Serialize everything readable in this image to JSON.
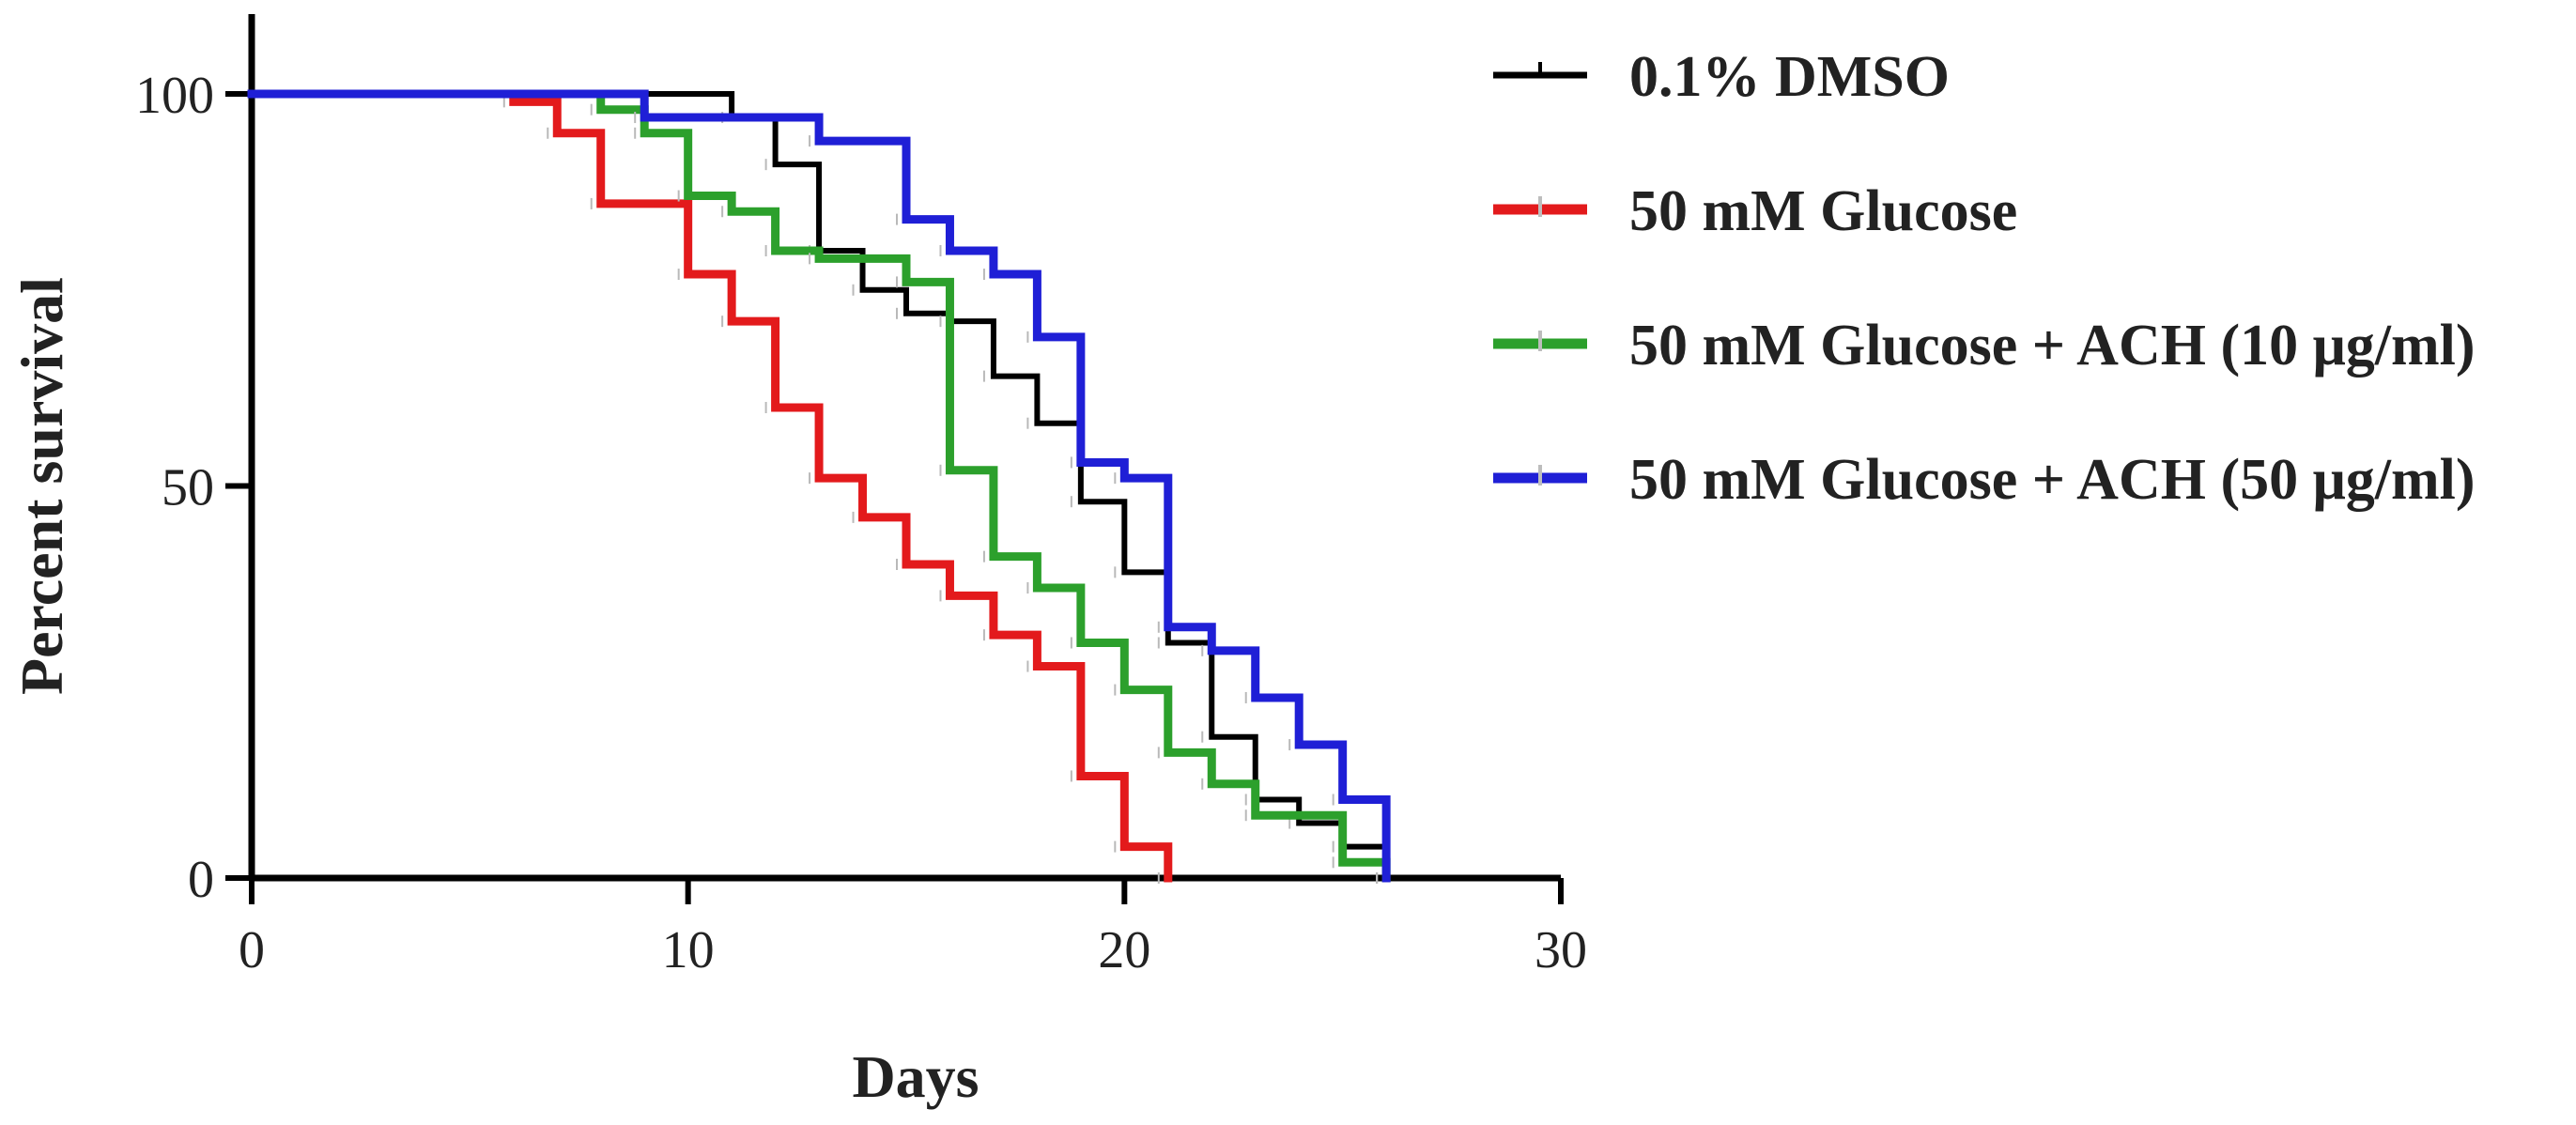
{
  "chart_data": {
    "type": "line",
    "style": "step",
    "title": "",
    "xlabel": "Days",
    "ylabel": "Percent survival",
    "xlim": [
      0,
      30
    ],
    "ylim": [
      0,
      100
    ],
    "xticks": [
      0,
      10,
      20,
      30
    ],
    "yticks": [
      0,
      50,
      100
    ],
    "grid": false,
    "legend_position": "top-right",
    "series": [
      {
        "name": "0.1% DMSO",
        "color": "#000000",
        "x": [
          0,
          11,
          12,
          13,
          14,
          15,
          16,
          17,
          18,
          19,
          20,
          21,
          22,
          23,
          24,
          25,
          26
        ],
        "y": [
          100,
          97,
          91,
          80,
          75,
          72,
          71,
          64,
          58,
          48,
          39,
          30,
          18,
          10,
          7,
          4,
          0
        ]
      },
      {
        "name": "50 mM Glucose",
        "color": "#e31a1c",
        "x": [
          0,
          6,
          7,
          8,
          10,
          11,
          12,
          13,
          14,
          15,
          16,
          17,
          18,
          19,
          20,
          21
        ],
        "y": [
          100,
          99,
          95,
          86,
          77,
          71,
          60,
          51,
          46,
          40,
          36,
          31,
          27,
          13,
          4,
          0
        ]
      },
      {
        "name": "50 mM Glucose + ACH (10 μg/ml)",
        "color": "#2ca02c",
        "x": [
          0,
          8,
          9,
          10,
          11,
          12,
          13,
          15,
          16,
          17,
          18,
          19,
          20,
          21,
          22,
          23,
          25,
          26
        ],
        "y": [
          100,
          98,
          95,
          87,
          85,
          80,
          79,
          76,
          52,
          41,
          37,
          30,
          24,
          16,
          12,
          8,
          2,
          0
        ]
      },
      {
        "name": "50 mM Glucose + ACH (50 μg/ml)",
        "color": "#1f1fd6",
        "x": [
          0,
          9,
          13,
          15,
          16,
          17,
          18,
          19,
          20,
          21,
          22,
          23,
          24,
          25,
          26
        ],
        "y": [
          100,
          97,
          94,
          84,
          80,
          77,
          69,
          53,
          51,
          32,
          29,
          23,
          17,
          10,
          0
        ]
      }
    ]
  }
}
